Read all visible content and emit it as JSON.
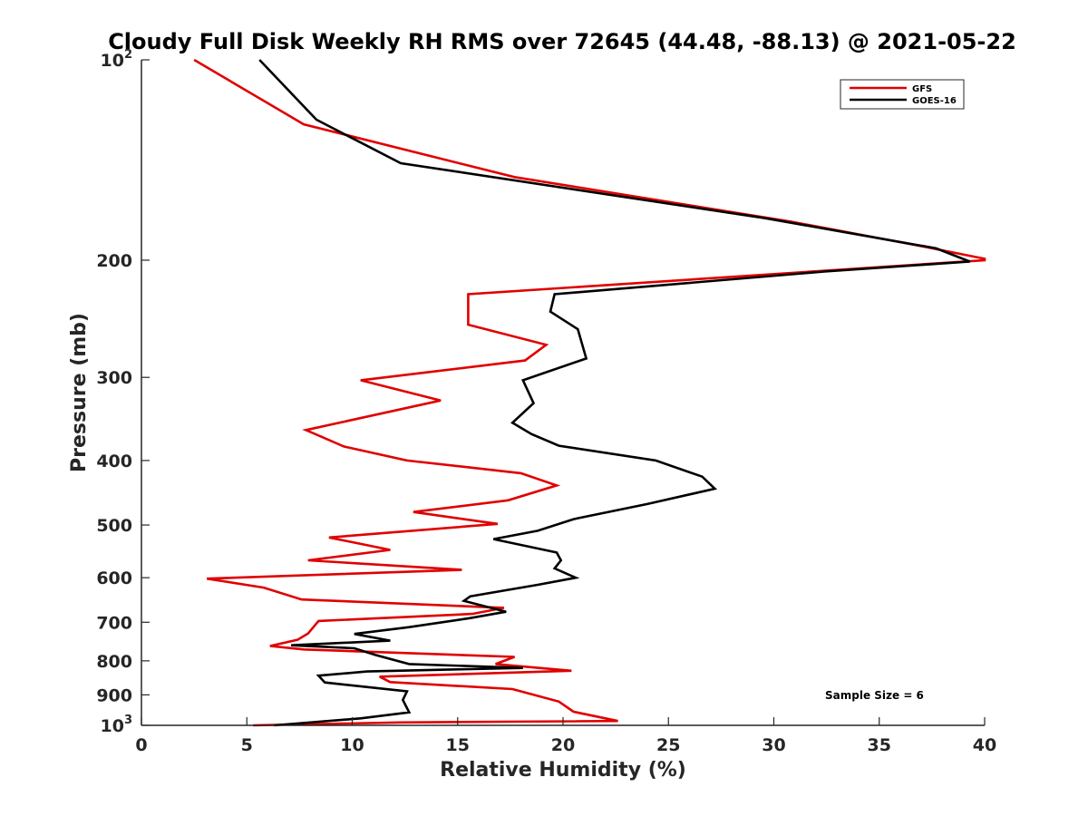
{
  "chart_data": {
    "type": "line",
    "title": "Cloudy Full Disk Weekly RH RMS over 72645 (44.48, -88.13) @ 2021-05-22",
    "xlabel": "Relative Humidity (%)",
    "ylabel": "Pressure (mb)",
    "xlim": [
      0,
      40
    ],
    "ylim": [
      100,
      1000
    ],
    "yscale": "log",
    "yreversed": true,
    "x_ticks": [
      "0",
      "5",
      "10",
      "15",
      "20",
      "25",
      "30",
      "35",
      "40"
    ],
    "y_ticks": [
      {
        "value": 100,
        "label": "10",
        "sup": "2"
      },
      {
        "value": 200,
        "label": "200",
        "sup": ""
      },
      {
        "value": 300,
        "label": "300",
        "sup": ""
      },
      {
        "value": 400,
        "label": "400",
        "sup": ""
      },
      {
        "value": 500,
        "label": "500",
        "sup": ""
      },
      {
        "value": 600,
        "label": "600",
        "sup": ""
      },
      {
        "value": 700,
        "label": "700",
        "sup": ""
      },
      {
        "value": 800,
        "label": "800",
        "sup": ""
      },
      {
        "value": 900,
        "label": "900",
        "sup": ""
      },
      {
        "value": 1000,
        "label": "10",
        "sup": "3"
      }
    ],
    "legend_position": "top-right",
    "annotation": "Sample Size = 6",
    "series": [
      {
        "name": "GFS",
        "color": "#e00000",
        "points": [
          [
            2.5,
            100
          ],
          [
            7.7,
            125
          ],
          [
            17.7,
            150
          ],
          [
            30.8,
            175
          ],
          [
            36.8,
            190
          ],
          [
            40.0,
            199
          ],
          [
            40.0,
            200
          ],
          [
            15.5,
            225
          ],
          [
            15.5,
            250
          ],
          [
            19.2,
            268
          ],
          [
            18.2,
            283
          ],
          [
            10.4,
            303
          ],
          [
            14.2,
            325
          ],
          [
            7.8,
            360
          ],
          [
            9.6,
            381
          ],
          [
            12.6,
            400
          ],
          [
            18.0,
            418
          ],
          [
            19.7,
            436
          ],
          [
            17.4,
            459
          ],
          [
            12.9,
            478
          ],
          [
            16.9,
            498
          ],
          [
            8.9,
            522
          ],
          [
            11.8,
            545
          ],
          [
            7.9,
            565
          ],
          [
            15.2,
            584
          ],
          [
            3.1,
            602
          ],
          [
            5.8,
            621
          ],
          [
            7.6,
            647
          ],
          [
            17.2,
            666
          ],
          [
            15.7,
            680
          ],
          [
            8.4,
            697
          ],
          [
            7.9,
            728
          ],
          [
            7.4,
            744
          ],
          [
            6.1,
            760
          ],
          [
            7.7,
            769
          ],
          [
            17.7,
            789
          ],
          [
            16.8,
            809
          ],
          [
            20.4,
            828
          ],
          [
            11.3,
            845
          ],
          [
            11.8,
            861
          ],
          [
            17.6,
            882
          ],
          [
            19.8,
            921
          ],
          [
            20.5,
            954
          ],
          [
            22.6,
            985
          ],
          [
            12.3,
            990
          ],
          [
            5.3,
            1000
          ]
        ]
      },
      {
        "name": "GOES-16",
        "color": "#000000",
        "points": [
          [
            5.6,
            100
          ],
          [
            8.3,
            123
          ],
          [
            12.3,
            143
          ],
          [
            29.6,
            173
          ],
          [
            37.7,
            192
          ],
          [
            39.3,
            201
          ],
          [
            32.4,
            208
          ],
          [
            19.6,
            225
          ],
          [
            19.4,
            239
          ],
          [
            20.7,
            254
          ],
          [
            21.1,
            281
          ],
          [
            18.1,
            303
          ],
          [
            18.6,
            328
          ],
          [
            17.6,
            351
          ],
          [
            18.5,
            365
          ],
          [
            19.8,
            380
          ],
          [
            24.4,
            400
          ],
          [
            26.6,
            423
          ],
          [
            27.2,
            441
          ],
          [
            24.0,
            465
          ],
          [
            20.5,
            490
          ],
          [
            18.8,
            510
          ],
          [
            16.7,
            525
          ],
          [
            19.7,
            550
          ],
          [
            19.9,
            565
          ],
          [
            19.6,
            581
          ],
          [
            20.6,
            600
          ],
          [
            18.8,
            615
          ],
          [
            15.6,
            640
          ],
          [
            15.3,
            650
          ],
          [
            17.3,
            675
          ],
          [
            15.6,
            690
          ],
          [
            12.7,
            712
          ],
          [
            10.1,
            729
          ],
          [
            11.8,
            746
          ],
          [
            7.1,
            758
          ],
          [
            10.1,
            766
          ],
          [
            11.1,
            784
          ],
          [
            12.7,
            809
          ],
          [
            18.1,
            820
          ],
          [
            10.7,
            830
          ],
          [
            8.4,
            842
          ],
          [
            8.7,
            862
          ],
          [
            12.6,
            889
          ],
          [
            12.4,
            916
          ],
          [
            12.7,
            956
          ],
          [
            10.4,
            976
          ],
          [
            6.3,
            1000
          ]
        ]
      }
    ]
  }
}
